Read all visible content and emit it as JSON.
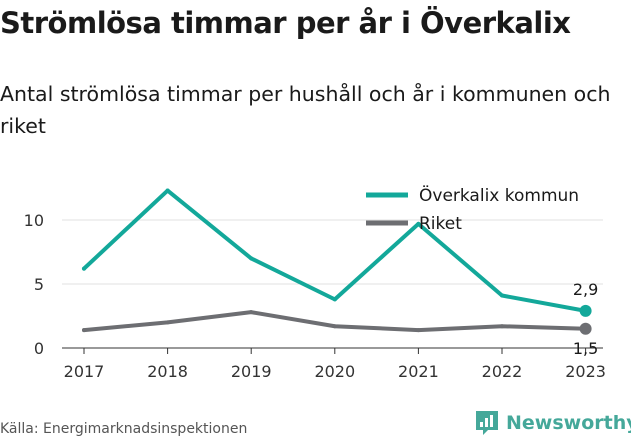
{
  "title": "Strömlösa timmar per år i Överkalix",
  "subtitle": "Antal strömlösa timmar per hushåll och år i kommunen och riket",
  "source": "Källa: Energimarknadsinspektionen",
  "brand": "Newsworthy",
  "colors": {
    "accent": "#13a89a",
    "secondary": "#6d6e72",
    "brand": "#45a89a"
  },
  "chart_data": {
    "type": "line",
    "x": [
      "2017",
      "2018",
      "2019",
      "2020",
      "2021",
      "2022",
      "2023"
    ],
    "ylim": [
      0,
      12.5
    ],
    "yticks": [
      0,
      5,
      10
    ],
    "grid": true,
    "legend_position": "top-right",
    "series": [
      {
        "name": "Överkalix kommun",
        "color": "#13a89a",
        "values": [
          6.2,
          12.3,
          7.0,
          3.8,
          9.7,
          4.1,
          2.9
        ],
        "end_label": "2,9"
      },
      {
        "name": "Riket",
        "color": "#6d6e72",
        "values": [
          1.4,
          2.0,
          2.8,
          1.7,
          1.4,
          1.7,
          1.5
        ],
        "end_label": "1,5"
      }
    ]
  }
}
